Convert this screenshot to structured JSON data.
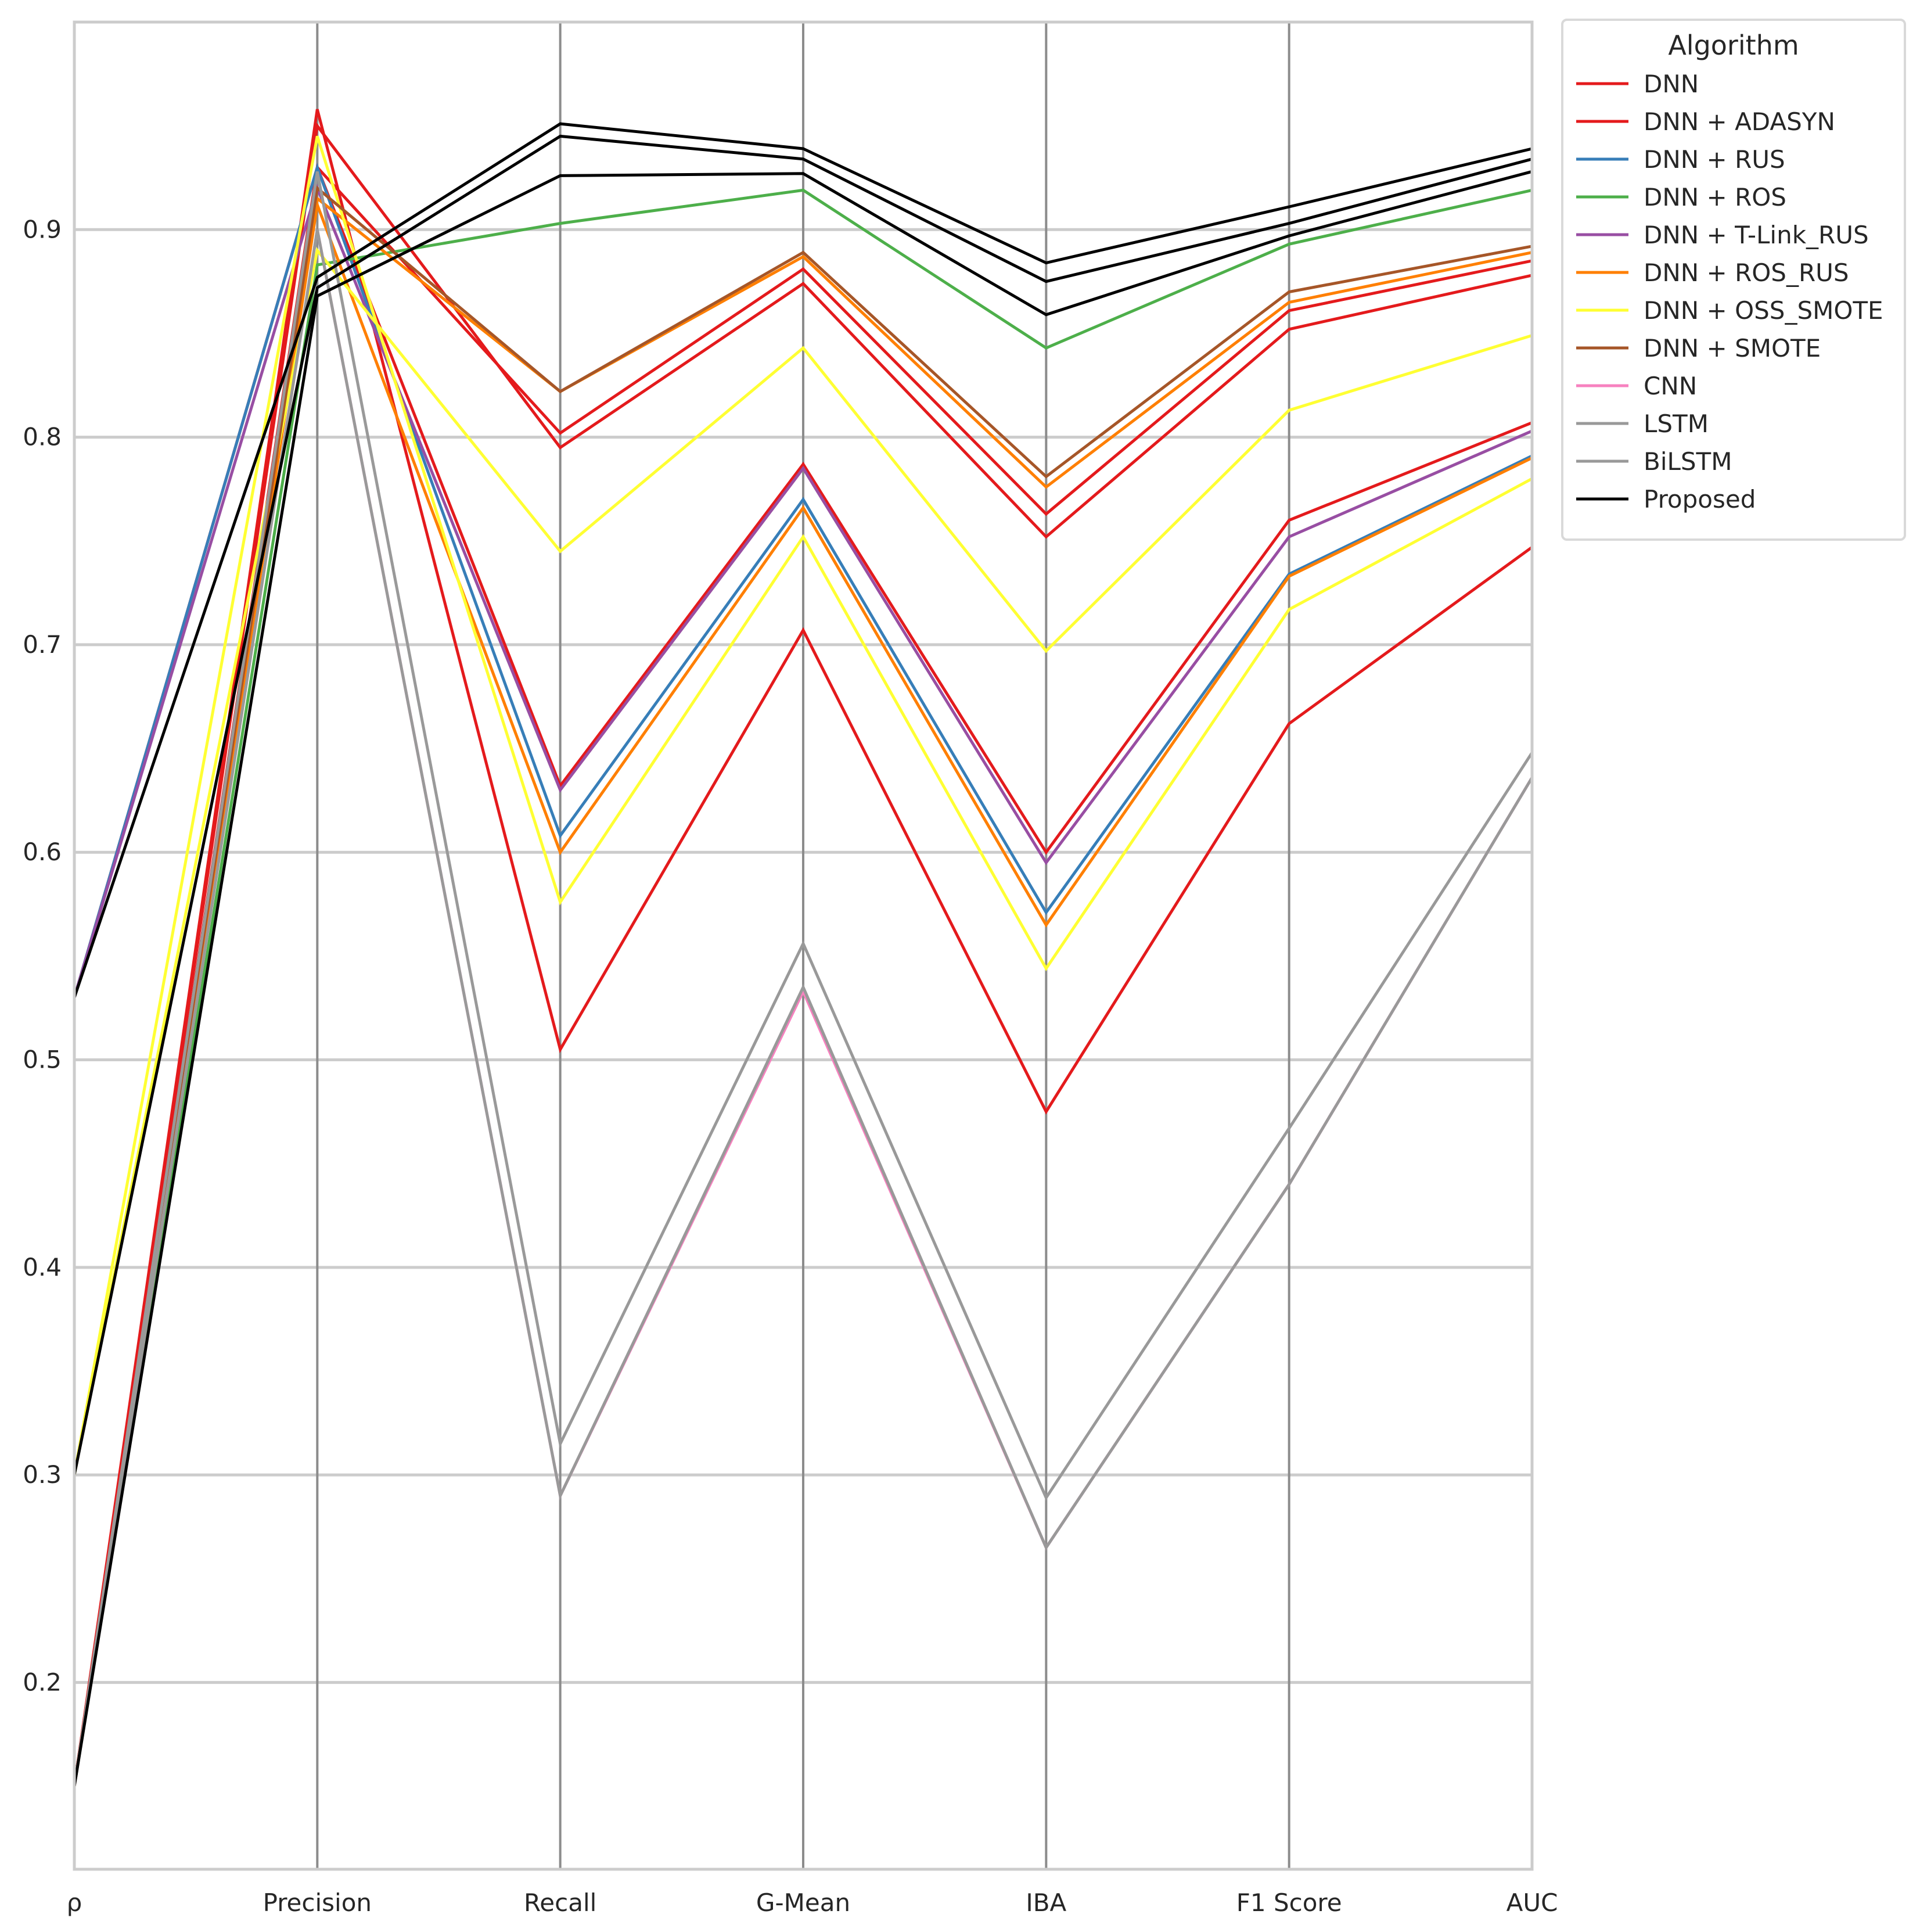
{
  "chart_data": {
    "type": "line",
    "subtype": "parallel-coordinates",
    "title": "",
    "xlabel": "",
    "ylabel": "",
    "categories": [
      "ρ",
      "Precision",
      "Recall",
      "G-Mean",
      "IBA",
      "F1 Score",
      "AUC"
    ],
    "ylim": [
      0.11,
      1.0
    ],
    "yticks": [
      0.2,
      0.3,
      0.4,
      0.5,
      0.6,
      0.7,
      0.8,
      0.9
    ],
    "ytick_labels": [
      "0.2",
      "0.3",
      "0.4",
      "0.5",
      "0.6",
      "0.7",
      "0.8",
      "0.9"
    ],
    "grid": true,
    "legend": {
      "title": "Algorithm",
      "placement": "outside-top-right"
    },
    "series": [
      {
        "name": "DNN",
        "color": "#e41a1c",
        "values": [
          0.15,
          0.958,
          0.505,
          0.707,
          0.475,
          0.662,
          0.747
        ]
      },
      {
        "name": "DNN",
        "color": "#e41a1c",
        "values": [
          0.53,
          0.93,
          0.632,
          0.787,
          0.6,
          0.76,
          0.807
        ]
      },
      {
        "name": "DNN",
        "color": "#e41a1c",
        "values": [
          0.15,
          0.95,
          0.795,
          0.874,
          0.752,
          0.852,
          0.878
        ]
      },
      {
        "name": "DNN + ADASYN",
        "color": "#e41a1c",
        "values": [
          0.15,
          0.93,
          0.802,
          0.881,
          0.763,
          0.861,
          0.885
        ]
      },
      {
        "name": "DNN + RUS",
        "color": "#377eb8",
        "values": [
          0.53,
          0.93,
          0.608,
          0.77,
          0.571,
          0.734,
          0.791
        ]
      },
      {
        "name": "DNN + ROS",
        "color": "#4daf4a",
        "values": [
          0.15,
          0.883,
          0.903,
          0.919,
          0.843,
          0.893,
          0.919
        ]
      },
      {
        "name": "DNN + T-Link_RUS",
        "color": "#984ea3",
        "values": [
          0.53,
          0.92,
          0.63,
          0.785,
          0.595,
          0.752,
          0.803
        ]
      },
      {
        "name": "DNN + ROS_RUS",
        "color": "#ff7f00",
        "values": [
          0.15,
          0.912,
          0.6,
          0.766,
          0.565,
          0.733,
          0.79
        ]
      },
      {
        "name": "DNN + ROS_RUS",
        "color": "#ff7f00",
        "values": [
          0.15,
          0.915,
          0.822,
          0.887,
          0.776,
          0.865,
          0.889
        ]
      },
      {
        "name": "DNN + OSS_SMOTE",
        "color": "#ffff33",
        "values": [
          0.3,
          0.945,
          0.576,
          0.752,
          0.544,
          0.717,
          0.78
        ]
      },
      {
        "name": "DNN + OSS_SMOTE",
        "color": "#ffff33",
        "values": [
          0.3,
          0.89,
          0.745,
          0.843,
          0.697,
          0.813,
          0.849
        ]
      },
      {
        "name": "DNN + SMOTE",
        "color": "#a65628",
        "values": [
          0.15,
          0.92,
          0.822,
          0.889,
          0.781,
          0.87,
          0.892
        ]
      },
      {
        "name": "CNN",
        "color": "#f781bf",
        "values": [
          0.15,
          0.9,
          0.29,
          0.533,
          0.265,
          0.44,
          0.636
        ]
      },
      {
        "name": "LSTM",
        "color": "#999999",
        "values": [
          0.15,
          0.928,
          0.315,
          0.556,
          0.289,
          0.467,
          0.648
        ]
      },
      {
        "name": "BiLSTM",
        "color": "#999999",
        "values": [
          0.15,
          0.9,
          0.29,
          0.535,
          0.265,
          0.44,
          0.636
        ]
      },
      {
        "name": "Proposed",
        "color": "#000000",
        "values": [
          0.15,
          0.868,
          0.926,
          0.927,
          0.859,
          0.897,
          0.928
        ]
      },
      {
        "name": "Proposed",
        "color": "#000000",
        "values": [
          0.3,
          0.872,
          0.945,
          0.934,
          0.875,
          0.903,
          0.934
        ]
      },
      {
        "name": "Proposed",
        "color": "#000000",
        "values": [
          0.53,
          0.877,
          0.951,
          0.939,
          0.884,
          0.911,
          0.939
        ]
      }
    ],
    "legend_entries": [
      {
        "label": "DNN",
        "color": "#e41a1c"
      },
      {
        "label": "DNN + ADASYN",
        "color": "#e41a1c"
      },
      {
        "label": "DNN + RUS",
        "color": "#377eb8"
      },
      {
        "label": "DNN + ROS",
        "color": "#4daf4a"
      },
      {
        "label": "DNN + T-Link_RUS",
        "color": "#984ea3"
      },
      {
        "label": "DNN + ROS_RUS",
        "color": "#ff7f00"
      },
      {
        "label": "DNN + OSS_SMOTE",
        "color": "#ffff33"
      },
      {
        "label": "DNN + SMOTE",
        "color": "#a65628"
      },
      {
        "label": "CNN",
        "color": "#f781bf"
      },
      {
        "label": "LSTM",
        "color": "#999999"
      },
      {
        "label": "BiLSTM",
        "color": "#999999"
      },
      {
        "label": "Proposed",
        "color": "#000000"
      }
    ]
  }
}
